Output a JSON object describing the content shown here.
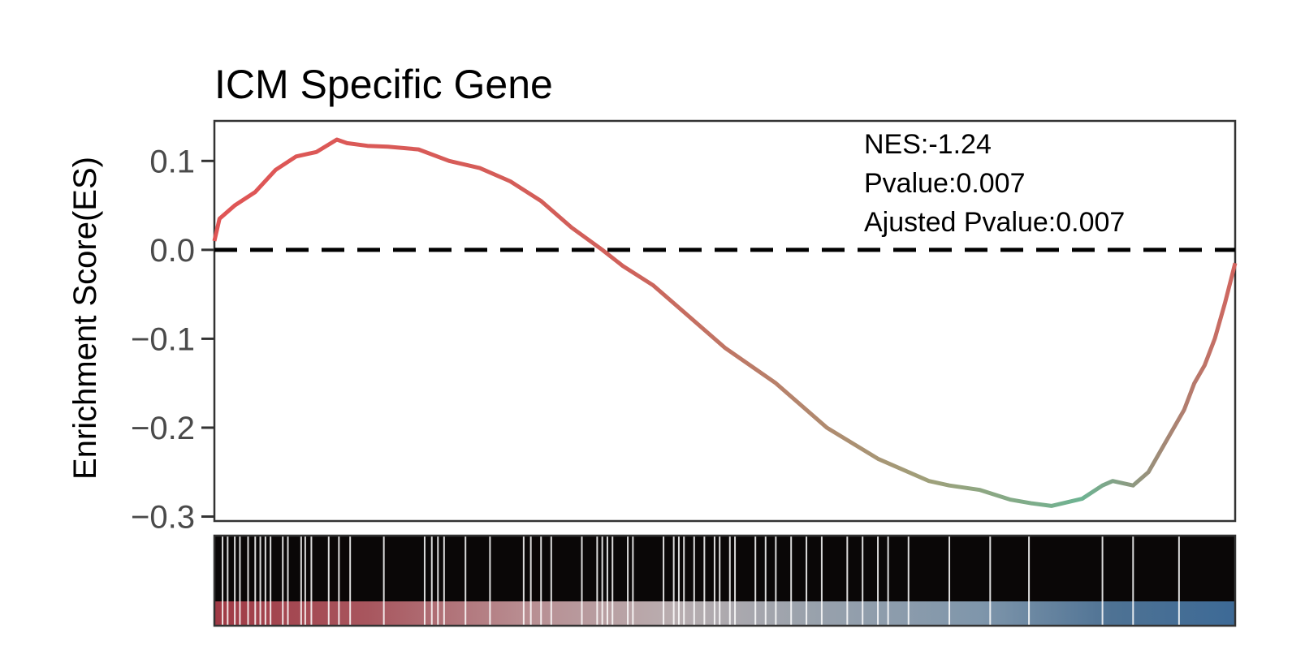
{
  "chart_data": {
    "type": "line",
    "title": "ICM Specific Gene",
    "ylabel": "Enrichment Score(ES)",
    "xlabel": "",
    "ylim": [
      -0.305,
      0.145
    ],
    "xlim": [
      0,
      1
    ],
    "y_ticks": [
      0.1,
      0.0,
      -0.1,
      -0.2,
      -0.3
    ],
    "y_tick_labels": [
      "0.1",
      "0.0",
      "−0.1",
      "−0.2",
      "−0.3"
    ],
    "grid": false,
    "reference_line": {
      "y": 0.0,
      "style": "dashed",
      "color": "#000000"
    },
    "annotations": [
      "NES:-1.24",
      "Pvalue:0.007",
      "Ajusted Pvalue:0.007"
    ],
    "series": [
      {
        "x": [
          0.0,
          0.005,
          0.02,
          0.04,
          0.06,
          0.08,
          0.1,
          0.12,
          0.13,
          0.15,
          0.17,
          0.2,
          0.23,
          0.26,
          0.29,
          0.32,
          0.35,
          0.38,
          0.4,
          0.43,
          0.46,
          0.5,
          0.55,
          0.6,
          0.65,
          0.7,
          0.72,
          0.75,
          0.78,
          0.8,
          0.82,
          0.85,
          0.87,
          0.88,
          0.9,
          0.915,
          0.93,
          0.95,
          0.96,
          0.97,
          0.98,
          0.99,
          1.0
        ],
        "y": [
          0.01,
          0.035,
          0.05,
          0.065,
          0.09,
          0.105,
          0.11,
          0.124,
          0.12,
          0.117,
          0.116,
          0.113,
          0.1,
          0.092,
          0.077,
          0.055,
          0.025,
          0.0,
          -0.018,
          -0.04,
          -0.07,
          -0.11,
          -0.15,
          -0.2,
          -0.235,
          -0.26,
          -0.265,
          -0.27,
          -0.281,
          -0.285,
          -0.288,
          -0.28,
          -0.265,
          -0.26,
          -0.265,
          -0.25,
          -0.22,
          -0.18,
          -0.15,
          -0.13,
          -0.1,
          -0.06,
          -0.015
        ],
        "color_start": "#e05555",
        "color_mid": "#b48a72",
        "color_end": "#6db392"
      }
    ],
    "rank_panel": {
      "hits": [
        0.0,
        0.008,
        0.013,
        0.02,
        0.025,
        0.033,
        0.04,
        0.045,
        0.05,
        0.055,
        0.067,
        0.072,
        0.085,
        0.089,
        0.095,
        0.112,
        0.122,
        0.133,
        0.166,
        0.206,
        0.213,
        0.219,
        0.225,
        0.246,
        0.27,
        0.303,
        0.31,
        0.32,
        0.33,
        0.36,
        0.375,
        0.38,
        0.385,
        0.39,
        0.405,
        0.41,
        0.44,
        0.45,
        0.455,
        0.46,
        0.47,
        0.48,
        0.49,
        0.495,
        0.505,
        0.51,
        0.53,
        0.54,
        0.55,
        0.565,
        0.58,
        0.595,
        0.62,
        0.635,
        0.65,
        0.66,
        0.68,
        0.72,
        0.76,
        0.798,
        0.87,
        0.9,
        0.945
      ],
      "colors": [
        "#a03a45",
        "#c06c75",
        "#b88c90",
        "#aeb0b8",
        "#7f96ab",
        "#5a7896",
        "#3d6a96"
      ]
    }
  }
}
